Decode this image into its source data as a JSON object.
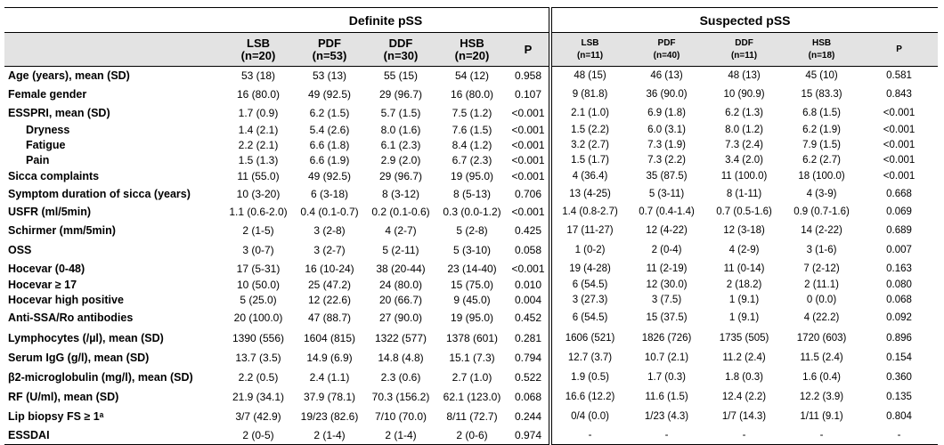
{
  "groups": {
    "definite": "Definite pSS",
    "suspected": "Suspected pSS"
  },
  "left_headers": [
    {
      "name": "LSB",
      "n": "(n=20)"
    },
    {
      "name": "PDF",
      "n": "(n=53)"
    },
    {
      "name": "DDF",
      "n": "(n=30)"
    },
    {
      "name": "HSB",
      "n": "(n=20)"
    },
    {
      "name": "P",
      "n": ""
    }
  ],
  "right_headers": [
    {
      "name": "LSB",
      "n": "(n=11)"
    },
    {
      "name": "PDF",
      "n": "(n=40)"
    },
    {
      "name": "DDF",
      "n": "(n=11)"
    },
    {
      "name": "HSB",
      "n": "(n=18)"
    },
    {
      "name": "P",
      "n": ""
    }
  ],
  "rows": [
    {
      "label": "Age (years), mean (SD)",
      "h": 21,
      "left": [
        "53 (18)",
        "53 (13)",
        "55 (15)",
        "54 (12)",
        "0.958"
      ],
      "right": [
        "48 (15)",
        "46 (13)",
        "48 (13)",
        "45 (10)",
        "0.581"
      ]
    },
    {
      "label": "Female gender",
      "h": 21,
      "left": [
        "16 (80.0)",
        "49 (92.5)",
        "29 (96.7)",
        "16 (80.0)",
        "0.107"
      ],
      "right": [
        "9 (81.8)",
        "36 (90.0)",
        "10 (90.9)",
        "15 (83.3)",
        "0.843"
      ]
    },
    {
      "label": "ESSPRI, mean (SD)",
      "h": 21,
      "left": [
        "1.7 (0.9)",
        "6.2 (1.5)",
        "5.7 (1.5)",
        "7.5 (1.2)",
        "<0.001"
      ],
      "right": [
        "2.1 (1.0)",
        "6.9 (1.8)",
        "6.2 (1.3)",
        "6.8 (1.5)",
        "<0.001"
      ]
    },
    {
      "label": "Dryness",
      "indent": true,
      "h": 17,
      "left": [
        "1.4 (2.1)",
        "5.4 (2.6)",
        "8.0 (1.6)",
        "7.6 (1.5)",
        "<0.001"
      ],
      "right": [
        "1.5 (2.2)",
        "6.0 (3.1)",
        "8.0 (1.2)",
        "6.2 (1.9)",
        "<0.001"
      ]
    },
    {
      "label": "Fatigue",
      "indent": true,
      "h": 17,
      "left": [
        "2.2 (2.1)",
        "6.6 (1.8)",
        "6.1 (2.3)",
        "8.4 (1.2)",
        "<0.001"
      ],
      "right": [
        "3.2 (2.7)",
        "7.3 (1.9)",
        "7.3 (2.4)",
        "7.9 (1.5)",
        "<0.001"
      ]
    },
    {
      "label": "Pain",
      "indent": true,
      "h": 17,
      "left": [
        "1.5 (1.3)",
        "6.6 (1.9)",
        "2.9 (2.0)",
        "6.7 (2.3)",
        "<0.001"
      ],
      "right": [
        "1.5 (1.7)",
        "7.3 (2.2)",
        "3.4 (2.0)",
        "6.2 (2.7)",
        "<0.001"
      ]
    },
    {
      "label": "Sicca complaints",
      "h": 19,
      "left": [
        "11 (55.0)",
        "49 (92.5)",
        "29 (96.7)",
        "19 (95.0)",
        "<0.001"
      ],
      "right": [
        "4 (36.4)",
        "35 (87.5)",
        "11 (100.0)",
        "18 (100.0)",
        "<0.001"
      ]
    },
    {
      "label": "Symptom duration of sicca (years)",
      "h": 20,
      "left": [
        "10 (3-20)",
        "6 (3-18)",
        "8 (3-12)",
        "8 (5-13)",
        "0.706"
      ],
      "right": [
        "13 (4-25)",
        "5 (3-11)",
        "8 (1-11)",
        "4 (3-9)",
        "0.668"
      ]
    },
    {
      "label": "USFR (ml/5min)",
      "h": 20,
      "left": [
        "1.1 (0.6-2.0)",
        "0.4 (0.1-0.7)",
        "0.2 (0.1-0.6)",
        "0.3 (0.0-1.2)",
        "<0.001"
      ],
      "right": [
        "1.4 (0.8-2.7)",
        "0.7 (0.4-1.4)",
        "0.7 (0.5-1.6)",
        "0.9 (0.7-1.6)",
        "0.069"
      ]
    },
    {
      "label": "Schirmer (mm/5min)",
      "h": 22,
      "left": [
        "2 (1-5)",
        "3 (2-8)",
        "4 (2-7)",
        "5 (2-8)",
        "0.425"
      ],
      "right": [
        "17 (11-27)",
        "12 (4-22)",
        "12 (3-18)",
        "14 (2-22)",
        "0.689"
      ]
    },
    {
      "label": "OSS",
      "h": 22,
      "left": [
        "3 (0-7)",
        "3 (2-7)",
        "5 (2-11)",
        "5 (3-10)",
        "0.058"
      ],
      "right": [
        "1 (0-2)",
        "2 (0-4)",
        "4 (2-9)",
        "3 (1-6)",
        "0.007"
      ]
    },
    {
      "label": "Hocevar (0-48)",
      "h": 20,
      "left": [
        "17 (5-31)",
        "16 (10-24)",
        "38 (20-44)",
        "23 (14-40)",
        "<0.001"
      ],
      "right": [
        "19 (4-28)",
        "11 (2-19)",
        "11 (0-14)",
        "7 (2-12)",
        "0.163"
      ]
    },
    {
      "label": "Hocevar ≥ 17",
      "h": 17,
      "left": [
        "10 (50.0)",
        "25 (47.2)",
        "24 (80.0)",
        "15 (75.0)",
        "0.010"
      ],
      "right": [
        "6 (54.5)",
        "12 (30.0)",
        "2 (18.2)",
        "2 (11.1)",
        "0.080"
      ]
    },
    {
      "label": "Hocevar high positive",
      "h": 17,
      "left": [
        "5 (25.0)",
        "12 (22.6)",
        "20 (66.7)",
        "9 (45.0)",
        "0.004"
      ],
      "right": [
        "3 (27.3)",
        "3 (7.5)",
        "1 (9.1)",
        "0 (0.0)",
        "0.068"
      ]
    },
    {
      "label": "Anti-SSA/Ro antibodies",
      "h": 23,
      "left": [
        "20 (100.0)",
        "47 (88.7)",
        "27 (90.0)",
        "19 (95.0)",
        "0.452"
      ],
      "right": [
        "6 (54.5)",
        "15 (37.5)",
        "1 (9.1)",
        "4 (22.2)",
        "0.092"
      ]
    },
    {
      "label": "Lymphocytes (/µl), mean (SD)",
      "h": 22,
      "left": [
        "1390 (556)",
        "1604 (815)",
        "1322 (577)",
        "1378 (601)",
        "0.281"
      ],
      "right": [
        "1606 (521)",
        "1826 (726)",
        "1735 (505)",
        "1720 (603)",
        "0.896"
      ]
    },
    {
      "label": "Serum IgG (g/l), mean (SD)",
      "h": 22,
      "left": [
        "13.7 (3.5)",
        "14.9 (6.9)",
        "14.8 (4.8)",
        "15.1 (7.3)",
        "0.794"
      ],
      "right": [
        "12.7 (3.7)",
        "10.7 (2.1)",
        "11.2 (2.4)",
        "11.5 (2.4)",
        "0.154"
      ]
    },
    {
      "label": "β2-microglobulin (mg/l), mean (SD)",
      "h": 22,
      "left": [
        "2.2 (0.5)",
        "2.4 (1.1)",
        "2.3 (0.6)",
        "2.7 (1.0)",
        "0.522"
      ],
      "right": [
        "1.9 (0.5)",
        "1.7 (0.3)",
        "1.8 (0.3)",
        "1.6 (0.4)",
        "0.360"
      ]
    },
    {
      "label": "RF (U/ml), mean (SD)",
      "h": 22,
      "left": [
        "21.9 (34.1)",
        "37.9 (78.1)",
        "70.3 (156.2)",
        "62.1 (123.0)",
        "0.068"
      ],
      "right": [
        "16.6 (12.2)",
        "11.6 (1.5)",
        "12.4 (2.2)",
        "12.2 (3.9)",
        "0.135"
      ]
    },
    {
      "label": "Lip biopsy FS ≥ 1ᵃ",
      "h": 22,
      "left": [
        "3/7 (42.9)",
        "19/23 (82.6)",
        "7/10 (70.0)",
        "8/11 (72.7)",
        "0.244"
      ],
      "right": [
        "0/4 (0.0)",
        "1/23 (4.3)",
        "1/7 (14.3)",
        "1/11 (9.1)",
        "0.804"
      ]
    },
    {
      "label": "ESSDAI",
      "h": 21,
      "left": [
        "2 (0-5)",
        "2 (1-4)",
        "2 (1-4)",
        "2 (0-6)",
        "0.974"
      ],
      "right": [
        "-",
        "-",
        "-",
        "-",
        "-"
      ]
    }
  ]
}
